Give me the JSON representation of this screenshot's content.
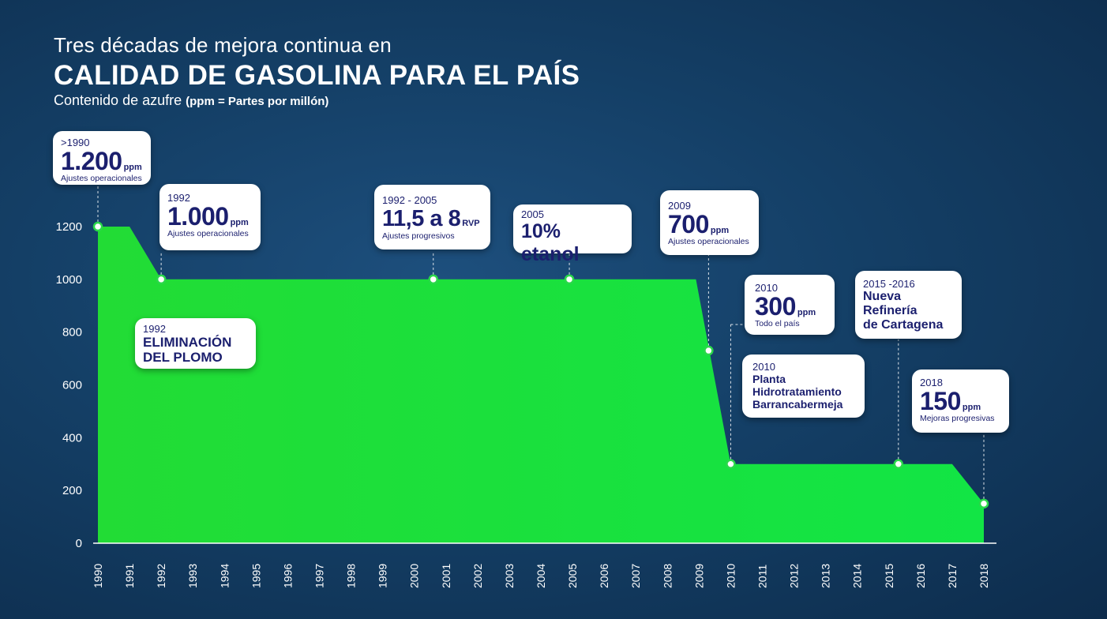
{
  "header": {
    "title_line1": "Tres décadas de mejora continua en",
    "title_line2": "CALIDAD DE GASOLINA PARA EL PAÍS",
    "subtitle_main": "Contenido de azufre ",
    "subtitle_bold": "(ppm = Partes por millón)"
  },
  "chart_data": {
    "type": "area",
    "title": "CALIDAD DE GASOLINA PARA EL PAÍS",
    "ylabel": "",
    "xlabel": "",
    "ylim": [
      0,
      1200
    ],
    "yticks": [
      "0",
      "200",
      "400",
      "600",
      "800",
      "1000",
      "1200"
    ],
    "xticks": [
      "1990",
      "1991",
      "1992",
      "1993",
      "1994",
      "1995",
      "1996",
      "1997",
      "1998",
      "1999",
      "2000",
      "2001",
      "2002",
      "2003",
      "2004",
      "2005",
      "2006",
      "2007",
      "2008",
      "2009",
      "2010",
      "2011",
      "2012",
      "2013",
      "2014",
      "2015",
      "2016",
      "2017",
      "2018"
    ],
    "fill_color": "#1ee03e",
    "series": [
      {
        "x": [
          1990,
          1991,
          1992,
          2008.9,
          2010,
          2017,
          2018
        ],
        "values": [
          1200,
          1200,
          1000,
          1000,
          300,
          300,
          150
        ]
      }
    ],
    "markers": [
      {
        "x": 1990,
        "y": 1200
      },
      {
        "x": 1992,
        "y": 1000
      },
      {
        "x": 2000.6,
        "y": 1000
      },
      {
        "x": 2004.9,
        "y": 1000
      },
      {
        "x": 2009.3,
        "y": 730
      },
      {
        "x": 2010,
        "y": 300
      },
      {
        "x": 2015.3,
        "y": 300
      },
      {
        "x": 2018,
        "y": 150
      }
    ]
  },
  "annotations": {
    "a1990": {
      "year": ">1990",
      "value": "1.200",
      "unit": "ppm",
      "note": "Ajustes operacionales"
    },
    "a1992": {
      "year": "1992",
      "value": "1.000",
      "unit": "ppm",
      "note": "Ajustes operacionales"
    },
    "plomo": {
      "year": "1992",
      "line1": "ELIMINACIÓN",
      "line2": "DEL PLOMO"
    },
    "rvp": {
      "year": "1992 - 2005",
      "value": "11,5 a 8",
      "unit": "RVP",
      "note": "Ajustes progresivos"
    },
    "etanol": {
      "year": "2005",
      "value": "10% etanol"
    },
    "a2009": {
      "year": "2009",
      "value": "700",
      "unit": "ppm",
      "note": "Ajustes operacionales"
    },
    "a2010": {
      "year": "2010",
      "value": "300",
      "unit": "ppm",
      "note": "Todo el país"
    },
    "planta": {
      "year": "2010",
      "line1": "Planta",
      "line2": "Hidrotratamiento",
      "line3": "Barrancabermeja"
    },
    "refineria": {
      "year": "2015 -2016",
      "line1": "Nueva",
      "line2": "Refinería",
      "line3": "de Cartagena"
    },
    "a2018": {
      "year": "2018",
      "value": "150",
      "unit": "ppm",
      "note": "Mejoras progresivas"
    }
  }
}
